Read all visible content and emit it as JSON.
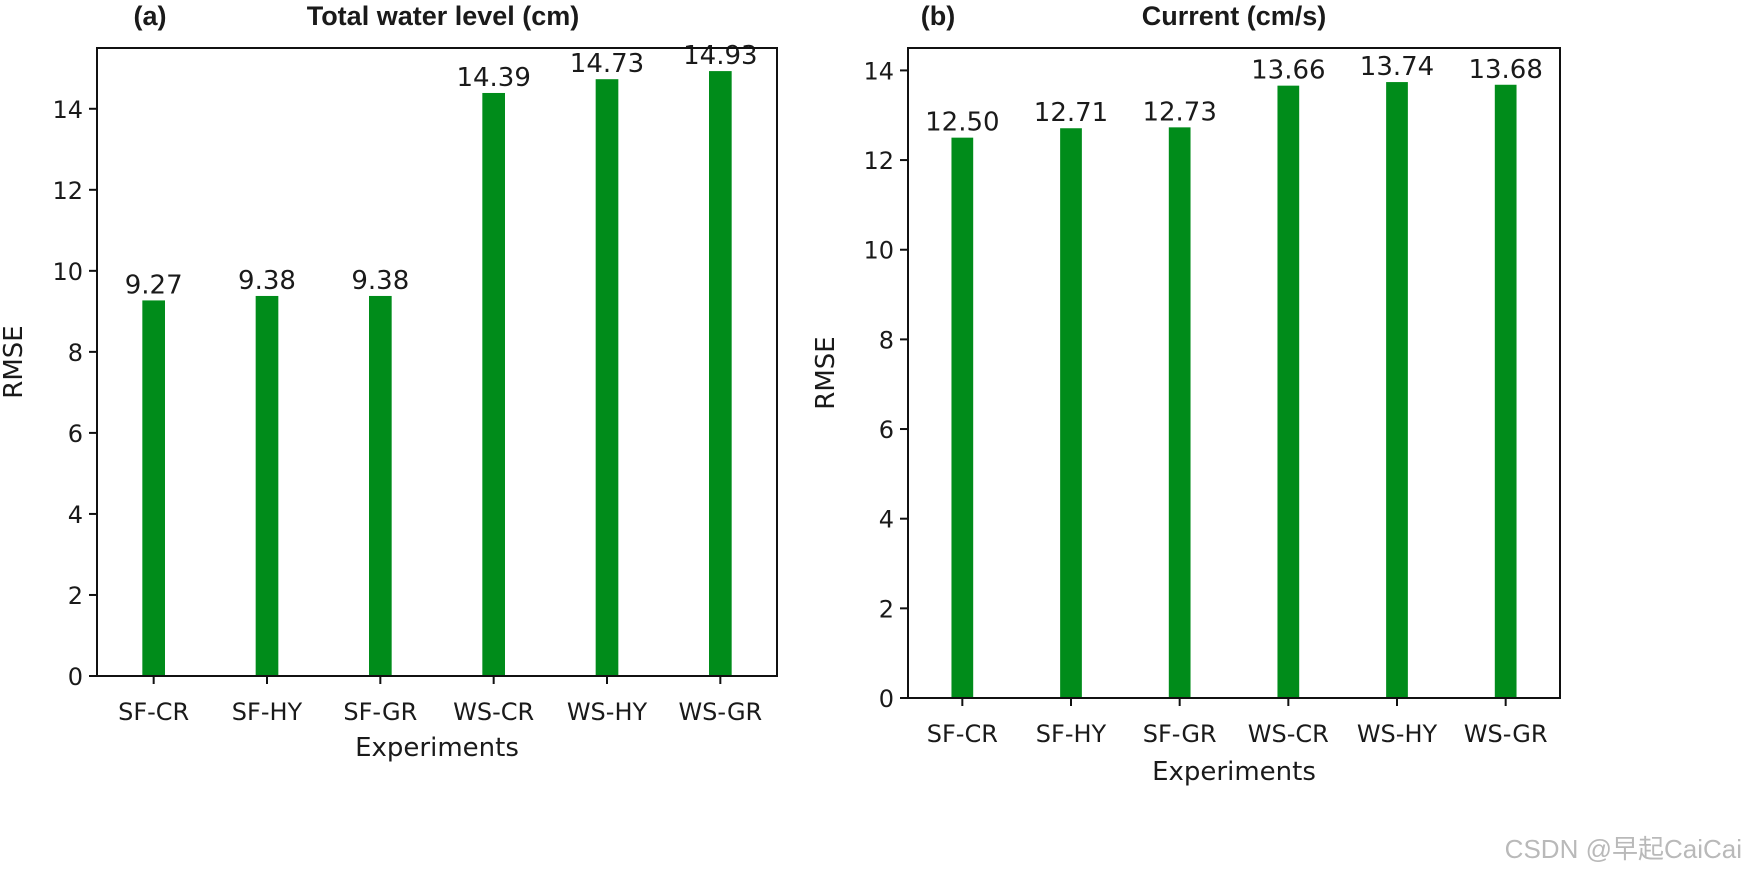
{
  "chart_data": [
    {
      "type": "bar",
      "panel_label": "(a)",
      "title": "Total water level (cm)",
      "xlabel": "Experiments",
      "ylabel": "RMSE",
      "categories": [
        "SF-CR",
        "SF-HY",
        "SF-GR",
        "WS-CR",
        "WS-HY",
        "WS-GR"
      ],
      "values": [
        9.27,
        9.38,
        9.38,
        14.39,
        14.73,
        14.93
      ],
      "value_labels": [
        "9.27",
        "9.38",
        "9.38",
        "14.39",
        "14.73",
        "14.93"
      ],
      "ylim": [
        0,
        15.5
      ],
      "yticks": [
        0,
        2,
        4,
        6,
        8,
        10,
        12,
        14
      ],
      "bar_color": "#008c1a",
      "grid": false
    },
    {
      "type": "bar",
      "panel_label": "(b)",
      "title": "Current (cm/s)",
      "xlabel": "Experiments",
      "ylabel": "RMSE",
      "categories": [
        "SF-CR",
        "SF-HY",
        "SF-GR",
        "WS-CR",
        "WS-HY",
        "WS-GR"
      ],
      "values": [
        12.5,
        12.71,
        12.73,
        13.66,
        13.74,
        13.68
      ],
      "value_labels": [
        "12.50",
        "12.71",
        "12.73",
        "13.66",
        "13.74",
        "13.68"
      ],
      "ylim": [
        0,
        14.5
      ],
      "yticks": [
        0,
        2,
        4,
        6,
        8,
        10,
        12,
        14
      ],
      "bar_color": "#008c1a",
      "grid": false
    }
  ],
  "watermark": "CSDN @早起CaiCai"
}
